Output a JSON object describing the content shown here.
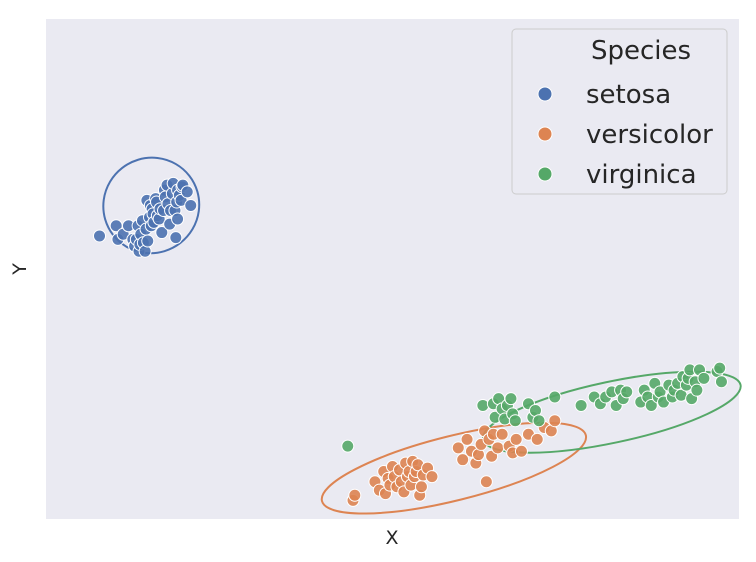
{
  "chart_data": {
    "type": "scatter",
    "title": "",
    "xlabel": "X",
    "ylabel": "Y",
    "xlim": [
      -3.9,
      4.0
    ],
    "ylim": [
      -1.55,
      1.4
    ],
    "grid": false,
    "legend": {
      "title": "Species",
      "placement": "top-right"
    },
    "series": [
      {
        "name": "setosa",
        "color": "#4c72b0",
        "ellipse": {
          "cx": -2.7,
          "cy": 0.3,
          "rx": 0.55,
          "ry": 0.28,
          "angle_deg": -38
        },
        "points": [
          [
            -3.29,
            0.12
          ],
          [
            -3.1,
            0.18
          ],
          [
            -3.08,
            0.1
          ],
          [
            -3.02,
            0.13
          ],
          [
            -2.96,
            0.18
          ],
          [
            -2.91,
            0.1
          ],
          [
            -2.89,
            0.06
          ],
          [
            -2.87,
            0.1
          ],
          [
            -2.85,
            0.18
          ],
          [
            -2.84,
            0.03
          ],
          [
            -2.83,
            0.07
          ],
          [
            -2.82,
            0.13
          ],
          [
            -2.8,
            0.21
          ],
          [
            -2.79,
            0.08
          ],
          [
            -2.77,
            0.03
          ],
          [
            -2.76,
            0.16
          ],
          [
            -2.75,
            0.33
          ],
          [
            -2.74,
            0.09
          ],
          [
            -2.72,
            0.23
          ],
          [
            -2.71,
            0.3
          ],
          [
            -2.7,
            0.18
          ],
          [
            -2.69,
            0.28
          ],
          [
            -2.68,
            0.25
          ],
          [
            -2.67,
            0.2
          ],
          [
            -2.65,
            0.34
          ],
          [
            -2.64,
            0.32
          ],
          [
            -2.63,
            0.24
          ],
          [
            -2.61,
            0.22
          ],
          [
            -2.6,
            0.28
          ],
          [
            -2.58,
            0.14
          ],
          [
            -2.56,
            0.27
          ],
          [
            -2.55,
            0.39
          ],
          [
            -2.54,
            0.35
          ],
          [
            -2.52,
            0.42
          ],
          [
            -2.51,
            0.31
          ],
          [
            -2.49,
            0.19
          ],
          [
            -2.48,
            0.27
          ],
          [
            -2.46,
            0.37
          ],
          [
            -2.45,
            0.43
          ],
          [
            -2.43,
            0.27
          ],
          [
            -2.42,
            0.11
          ],
          [
            -2.41,
            0.32
          ],
          [
            -2.4,
            0.39
          ],
          [
            -2.38,
            0.36
          ],
          [
            -2.36,
            0.33
          ],
          [
            -2.35,
            0.41
          ],
          [
            -2.34,
            0.42
          ],
          [
            -2.29,
            0.38
          ],
          [
            -2.25,
            0.3
          ],
          [
            -2.4,
            0.22
          ]
        ]
      },
      {
        "name": "versicolor",
        "color": "#dd8452",
        "ellipse": {
          "cx": 0.75,
          "cy": -1.25,
          "rx": 1.55,
          "ry": 0.19,
          "angle_deg": -14
        },
        "points": [
          [
            -0.4,
            -1.44
          ],
          [
            -0.38,
            -1.41
          ],
          [
            -0.15,
            -1.33
          ],
          [
            -0.1,
            -1.38
          ],
          [
            -0.05,
            -1.27
          ],
          [
            -0.03,
            -1.4
          ],
          [
            0.0,
            -1.31
          ],
          [
            0.02,
            -1.35
          ],
          [
            0.05,
            -1.24
          ],
          [
            0.07,
            -1.3
          ],
          [
            0.1,
            -1.36
          ],
          [
            0.13,
            -1.26
          ],
          [
            0.15,
            -1.33
          ],
          [
            0.18,
            -1.39
          ],
          [
            0.2,
            -1.22
          ],
          [
            0.22,
            -1.3
          ],
          [
            0.24,
            -1.27
          ],
          [
            0.26,
            -1.35
          ],
          [
            0.28,
            -1.21
          ],
          [
            0.3,
            -1.3
          ],
          [
            0.32,
            -1.27
          ],
          [
            0.34,
            -1.23
          ],
          [
            0.36,
            -1.41
          ],
          [
            0.38,
            -1.36
          ],
          [
            0.4,
            -1.29
          ],
          [
            0.45,
            -1.25
          ],
          [
            0.5,
            -1.3
          ],
          [
            0.8,
            -1.13
          ],
          [
            0.85,
            -1.2
          ],
          [
            0.9,
            -1.08
          ],
          [
            0.95,
            -1.15
          ],
          [
            1.0,
            -1.22
          ],
          [
            1.03,
            -1.17
          ],
          [
            1.06,
            -1.11
          ],
          [
            1.1,
            -1.03
          ],
          [
            1.12,
            -1.33
          ],
          [
            1.15,
            -1.08
          ],
          [
            1.18,
            -1.18
          ],
          [
            1.2,
            -1.05
          ],
          [
            1.25,
            -1.13
          ],
          [
            1.3,
            -1.05
          ],
          [
            1.38,
            -1.12
          ],
          [
            1.42,
            -1.16
          ],
          [
            1.46,
            -1.08
          ],
          [
            1.52,
            -1.15
          ],
          [
            1.6,
            -1.05
          ],
          [
            1.7,
            -1.08
          ],
          [
            1.78,
            -1.01
          ],
          [
            1.86,
            -1.03
          ],
          [
            1.9,
            -0.97
          ]
        ]
      },
      {
        "name": "virginica",
        "color": "#55a868",
        "ellipse": {
          "cx": 2.55,
          "cy": -0.92,
          "rx": 1.5,
          "ry": 0.18,
          "angle_deg": -12
        },
        "points": [
          [
            -0.46,
            -1.12
          ],
          [
            1.08,
            -0.88
          ],
          [
            1.2,
            -0.87
          ],
          [
            1.22,
            -0.95
          ],
          [
            1.26,
            -0.84
          ],
          [
            1.3,
            -0.9
          ],
          [
            1.33,
            -0.96
          ],
          [
            1.36,
            -0.88
          ],
          [
            1.4,
            -0.84
          ],
          [
            1.42,
            -0.93
          ],
          [
            1.45,
            -0.97
          ],
          [
            1.6,
            -0.87
          ],
          [
            1.65,
            -0.95
          ],
          [
            1.68,
            -0.91
          ],
          [
            1.72,
            -0.97
          ],
          [
            1.9,
            -0.83
          ],
          [
            2.2,
            -0.88
          ],
          [
            2.35,
            -0.83
          ],
          [
            2.42,
            -0.87
          ],
          [
            2.48,
            -0.83
          ],
          [
            2.55,
            -0.8
          ],
          [
            2.6,
            -0.88
          ],
          [
            2.65,
            -0.79
          ],
          [
            2.68,
            -0.84
          ],
          [
            2.72,
            -0.8
          ],
          [
            2.88,
            -0.86
          ],
          [
            2.92,
            -0.79
          ],
          [
            2.96,
            -0.83
          ],
          [
            3.0,
            -0.88
          ],
          [
            3.04,
            -0.75
          ],
          [
            3.08,
            -0.83
          ],
          [
            3.1,
            -0.8
          ],
          [
            3.14,
            -0.86
          ],
          [
            3.2,
            -0.76
          ],
          [
            3.24,
            -0.83
          ],
          [
            3.26,
            -0.79
          ],
          [
            3.3,
            -0.75
          ],
          [
            3.34,
            -0.82
          ],
          [
            3.36,
            -0.71
          ],
          [
            3.4,
            -0.76
          ],
          [
            3.42,
            -0.72
          ],
          [
            3.44,
            -0.67
          ],
          [
            3.46,
            -0.84
          ],
          [
            3.5,
            -0.74
          ],
          [
            3.52,
            -0.79
          ],
          [
            3.55,
            -0.67
          ],
          [
            3.6,
            -0.72
          ],
          [
            3.75,
            -0.68
          ],
          [
            3.78,
            -0.66
          ],
          [
            3.8,
            -0.74
          ]
        ]
      }
    ]
  }
}
